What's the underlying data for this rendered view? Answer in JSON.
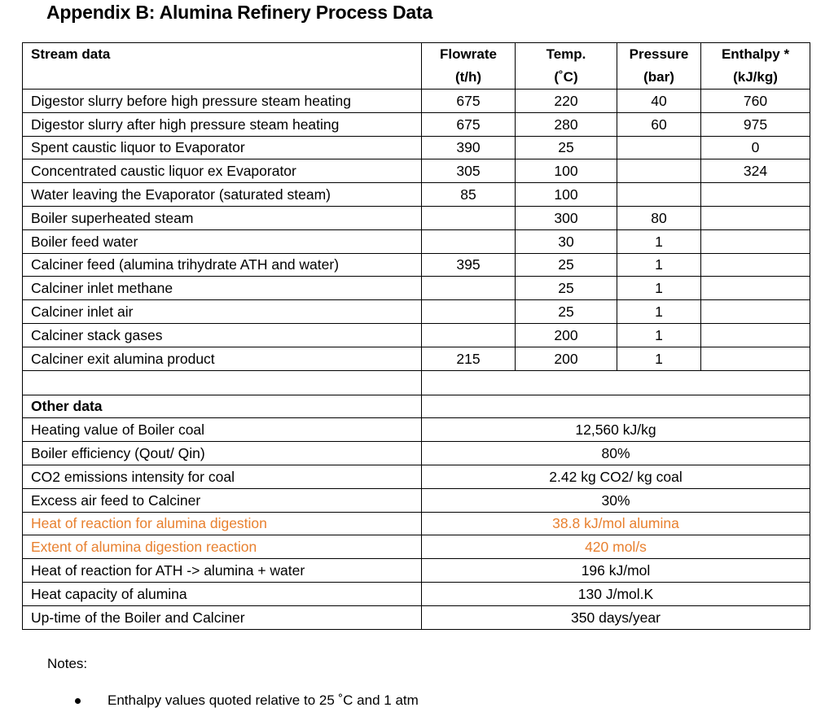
{
  "title": "Appendix B: Alumina Refinery Process Data",
  "stream_header": {
    "label": "Stream data",
    "flowrate": [
      "Flowrate",
      "(t/h)"
    ],
    "temp": [
      "Temp.",
      "(˚C)"
    ],
    "pressure": [
      "Pressure",
      "(bar)"
    ],
    "enthalpy": [
      "Enthalpy *",
      "(kJ/kg)"
    ]
  },
  "streams": [
    {
      "name": "Digestor slurry before high pressure steam heating",
      "flowrate": "675",
      "temp": "220",
      "pressure": "40",
      "enthalpy": "760"
    },
    {
      "name": "Digestor slurry after high pressure steam heating",
      "flowrate": "675",
      "temp": "280",
      "pressure": "60",
      "enthalpy": "975"
    },
    {
      "name": "Spent caustic liquor to Evaporator",
      "flowrate": "390",
      "temp": "25",
      "pressure": "",
      "enthalpy": "0"
    },
    {
      "name": "Concentrated caustic liquor ex Evaporator",
      "flowrate": "305",
      "temp": "100",
      "pressure": "",
      "enthalpy": "324"
    },
    {
      "name": "Water leaving the Evaporator (saturated steam)",
      "flowrate": "85",
      "temp": "100",
      "pressure": "",
      "enthalpy": ""
    },
    {
      "name": "Boiler superheated steam",
      "flowrate": "",
      "temp": "300",
      "pressure": "80",
      "enthalpy": ""
    },
    {
      "name": "Boiler feed water",
      "flowrate": "",
      "temp": "30",
      "pressure": "1",
      "enthalpy": ""
    },
    {
      "name": "Calciner feed (alumina trihydrate ATH and water)",
      "flowrate": "395",
      "temp": "25",
      "pressure": "1",
      "enthalpy": ""
    },
    {
      "name": "Calciner inlet methane",
      "flowrate": "",
      "temp": "25",
      "pressure": "1",
      "enthalpy": ""
    },
    {
      "name": "Calciner inlet air",
      "flowrate": "",
      "temp": "25",
      "pressure": "1",
      "enthalpy": ""
    },
    {
      "name": "Calciner stack gases",
      "flowrate": "",
      "temp": "200",
      "pressure": "1",
      "enthalpy": ""
    },
    {
      "name": "Calciner exit alumina product",
      "flowrate": "215",
      "temp": "200",
      "pressure": "1",
      "enthalpy": ""
    }
  ],
  "other_header": "Other data",
  "other": [
    {
      "name": "Heating value of Boiler coal",
      "value": "12,560 kJ/kg",
      "highlight": false
    },
    {
      "name": "Boiler efficiency (Qout/ Qin)",
      "value": "80%",
      "highlight": false
    },
    {
      "name": "CO2 emissions intensity for coal",
      "value": "2.42  kg CO2/ kg coal",
      "highlight": false
    },
    {
      "name": "Excess air feed to Calciner",
      "value": "30%",
      "highlight": false
    },
    {
      "name": "Heat of reaction for alumina digestion",
      "value": "38.8 kJ/mol alumina",
      "highlight": true
    },
    {
      "name": "Extent of alumina digestion reaction",
      "value": "420 mol/s",
      "highlight": true
    },
    {
      "name": "Heat of reaction for ATH -> alumina + water",
      "value": "196 kJ/mol",
      "highlight": false
    },
    {
      "name": "Heat capacity of alumina",
      "value": "130 J/mol.K",
      "highlight": false
    },
    {
      "name": "Up-time of the Boiler and Calciner",
      "value": "350 days/year",
      "highlight": false
    }
  ],
  "colors": {
    "highlight": "#e8802f",
    "border": "#000000"
  },
  "notes": {
    "label": "Notes:",
    "items": [
      "Enthalpy values quoted relative to 25 ˚C and 1 atm"
    ]
  }
}
